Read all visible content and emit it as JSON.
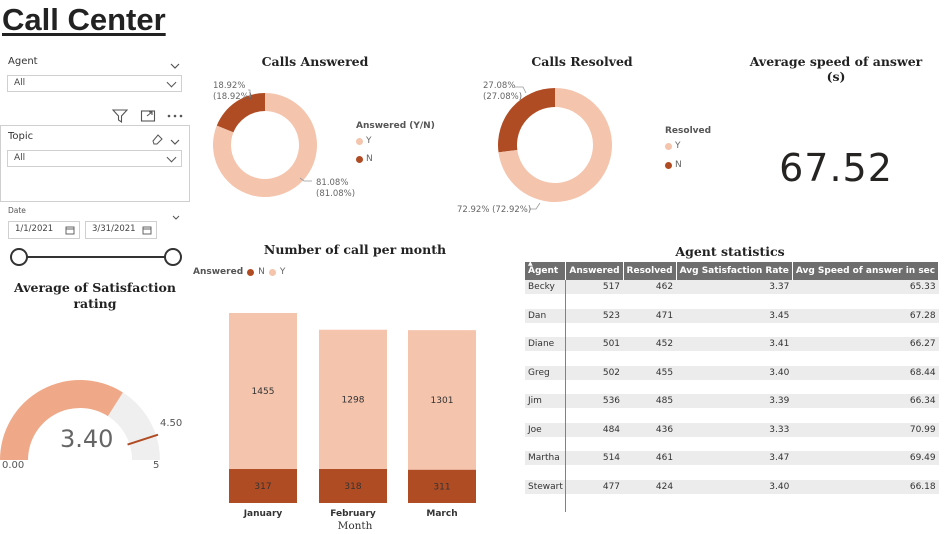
{
  "header": {
    "title": "Call Center"
  },
  "filters": {
    "agent": {
      "label": "Agent",
      "value": "All"
    },
    "topic": {
      "label": "Topic",
      "value": "All"
    },
    "date": {
      "label": "Date",
      "start": "1/1/2021",
      "end": "3/31/2021"
    }
  },
  "colors": {
    "light": "#f4c4ad",
    "dark": "#b04c24",
    "gauge_fill": "#f0a988",
    "gauge_bg": "#efefef",
    "table_header": "#6e6e6e",
    "row_bg": "#ececec"
  },
  "calls_answered": {
    "title": "Calls Answered",
    "legend_title": "Answered (Y/N)",
    "legend": [
      "Y",
      "N"
    ],
    "n_label": "18.92%\n(18.92%)",
    "y_label": "81.08%\n(81.08%)",
    "n_label_line1": "18.92%",
    "n_label_line2": "(18.92%)",
    "y_label_line1": "81.08%",
    "y_label_line2": "(81.08%)"
  },
  "calls_resolved": {
    "title": "Calls Resolved",
    "legend_title": "Resolved",
    "legend": [
      "Y",
      "N"
    ],
    "n_label_line1": "27.08%",
    "n_label_line2": "(27.08%)",
    "y_label_line1": "72.92% (72.92%)"
  },
  "avg_speed": {
    "title": "Average speed of answer (s)",
    "value": "67.52"
  },
  "satisfaction": {
    "title_line1": "Average of Satisfaction",
    "title_line2": "rating",
    "value_text": "3.40",
    "min_text": "0.00",
    "max_text": "5",
    "target_text": "4.50"
  },
  "monthly": {
    "title": "Number of call per month",
    "legend_title": "Answered",
    "legend": [
      "N",
      "Y"
    ],
    "xlabel": "Month"
  },
  "agent_stats": {
    "title": "Agent statistics",
    "columns": [
      "Agent",
      "Answered",
      "Resolved",
      "Avg Satisfaction Rate",
      "Avg Speed of answer in sec"
    ],
    "rows": [
      [
        "Becky",
        "517",
        "462",
        "3.37",
        "65.33"
      ],
      [
        "Dan",
        "523",
        "471",
        "3.45",
        "67.28"
      ],
      [
        "Diane",
        "501",
        "452",
        "3.41",
        "66.27"
      ],
      [
        "Greg",
        "502",
        "455",
        "3.40",
        "68.44"
      ],
      [
        "Jim",
        "536",
        "485",
        "3.39",
        "66.34"
      ],
      [
        "Joe",
        "484",
        "436",
        "3.33",
        "70.99"
      ],
      [
        "Martha",
        "514",
        "461",
        "3.47",
        "69.49"
      ],
      [
        "Stewart",
        "477",
        "424",
        "3.40",
        "66.18"
      ]
    ]
  },
  "chart_data": [
    {
      "type": "pie",
      "title": "Calls Answered",
      "categories": [
        "Y",
        "N"
      ],
      "values": [
        81.08,
        18.92
      ]
    },
    {
      "type": "pie",
      "title": "Calls Resolved",
      "categories": [
        "Y",
        "N"
      ],
      "values": [
        72.92,
        27.08
      ]
    },
    {
      "type": "bar",
      "stacked": true,
      "title": "Number of call per month",
      "categories": [
        "January",
        "February",
        "March"
      ],
      "xlabel": "Month",
      "series": [
        {
          "name": "N",
          "values": [
            317,
            318,
            311
          ]
        },
        {
          "name": "Y",
          "values": [
            1455,
            1298,
            1301
          ]
        }
      ]
    },
    {
      "type": "gauge",
      "title": "Average of Satisfaction rating",
      "value": 3.4,
      "min": 0,
      "max": 5,
      "target": 4.5
    }
  ]
}
